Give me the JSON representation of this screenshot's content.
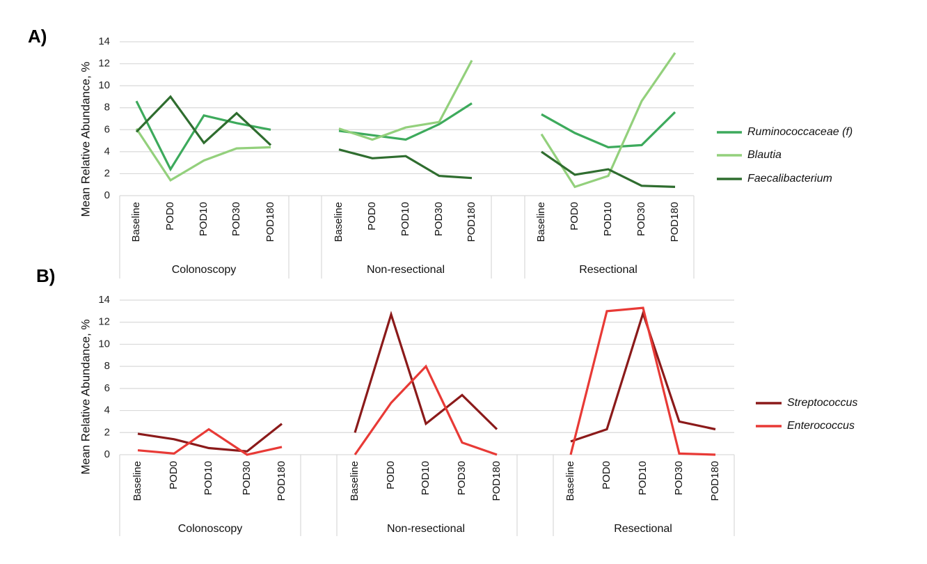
{
  "chart_data": [
    {
      "panel_label": "A)",
      "type": "line",
      "ylabel": "Mean Relative Abundance, %",
      "ylim": [
        0,
        14
      ],
      "yticks": [
        "0",
        "2",
        "4",
        "6",
        "8",
        "10",
        "12",
        "14"
      ],
      "grid": true,
      "legend_position": "right",
      "timepoints": [
        "Baseline",
        "POD0",
        "POD10",
        "POD30",
        "POD180"
      ],
      "groups": [
        "Colonoscopy",
        "Non-resectional",
        "Resectional"
      ],
      "series": [
        {
          "name": "Ruminococcaceae (f)",
          "color": "#3daa5c",
          "values": [
            [
              8.6,
              2.4,
              7.3,
              6.6,
              6.0
            ],
            [
              5.9,
              5.5,
              5.1,
              6.5,
              8.4
            ],
            [
              7.4,
              5.7,
              4.4,
              4.6,
              7.6
            ]
          ]
        },
        {
          "name": "Blautia",
          "color": "#93d07c",
          "values": [
            [
              6.1,
              1.4,
              3.2,
              4.3,
              4.4
            ],
            [
              6.1,
              5.1,
              6.2,
              6.7,
              12.3
            ],
            [
              5.6,
              0.8,
              1.8,
              8.6,
              13.0
            ]
          ]
        },
        {
          "name": "Faecalibacterium",
          "color": "#2f6d2f",
          "values": [
            [
              5.8,
              9.0,
              4.8,
              7.5,
              4.6
            ],
            [
              4.2,
              3.4,
              3.6,
              1.8,
              1.6
            ],
            [
              4.0,
              1.9,
              2.4,
              0.9,
              0.8
            ]
          ]
        }
      ]
    },
    {
      "panel_label": "B)",
      "type": "line",
      "ylabel": "Mean Relative Abundance, %",
      "ylim": [
        0,
        14
      ],
      "yticks": [
        "0",
        "2",
        "4",
        "6",
        "8",
        "10",
        "12",
        "14"
      ],
      "grid": true,
      "legend_position": "right",
      "timepoints": [
        "Baseline",
        "POD0",
        "POD10",
        "POD30",
        "POD180"
      ],
      "groups": [
        "Colonoscopy",
        "Non-resectional",
        "Resectional"
      ],
      "series": [
        {
          "name": "Streptococcus",
          "color": "#8b1a1a",
          "values": [
            [
              1.9,
              1.4,
              0.6,
              0.3,
              2.8
            ],
            [
              2.0,
              12.7,
              2.8,
              5.4,
              2.3
            ],
            [
              1.2,
              2.3,
              12.8,
              3.0,
              2.3
            ]
          ]
        },
        {
          "name": "Enterococcus",
          "color": "#e83a36",
          "values": [
            [
              0.4,
              0.1,
              2.3,
              0.0,
              0.7
            ],
            [
              0.0,
              4.7,
              8.0,
              1.1,
              0.0
            ],
            [
              0.0,
              13.0,
              13.3,
              0.1,
              0.0
            ]
          ]
        }
      ]
    }
  ]
}
